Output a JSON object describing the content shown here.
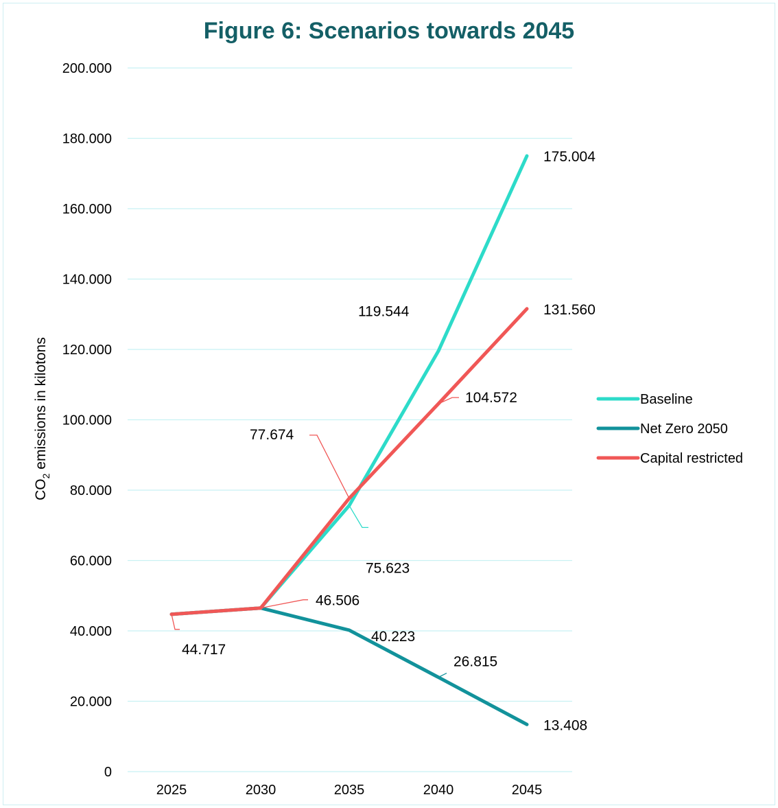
{
  "chart_data": {
    "type": "line",
    "title": "Figure 6: Scenarios towards 2045",
    "ylabel_main": "CO",
    "ylabel_sub": "2",
    "ylabel_rest": " emissions in kilotons",
    "xlabel": "",
    "categories": [
      "2025",
      "2030",
      "2035",
      "2040",
      "2045"
    ],
    "ylim": [
      0,
      200000
    ],
    "yticks": [
      {
        "value": 0,
        "label": "0"
      },
      {
        "value": 20000,
        "label": "20.000"
      },
      {
        "value": 40000,
        "label": "40.000"
      },
      {
        "value": 60000,
        "label": "60.000"
      },
      {
        "value": 80000,
        "label": "80.000"
      },
      {
        "value": 100000,
        "label": "100.000"
      },
      {
        "value": 120000,
        "label": "120.000"
      },
      {
        "value": 140000,
        "label": "140.000"
      },
      {
        "value": 160000,
        "label": "160.000"
      },
      {
        "value": 180000,
        "label": "180.000"
      },
      {
        "value": 200000,
        "label": "200.000"
      }
    ],
    "grid": true,
    "legend_position": "right",
    "series": [
      {
        "name": "Baseline",
        "color": "#2ddbc9",
        "values": [
          44717,
          46506,
          75623,
          119544,
          175004
        ],
        "labels": [
          "",
          "",
          "75.623",
          "119.544",
          "175.004"
        ]
      },
      {
        "name": "Net Zero 2050",
        "color": "#12929b",
        "values": [
          44717,
          46506,
          40223,
          26815,
          13408
        ],
        "labels": [
          "",
          "",
          "40.223",
          "26.815",
          "13.408"
        ]
      },
      {
        "name": "Capital restricted",
        "color": "#f05756",
        "values": [
          44717,
          46506,
          77674,
          104572,
          131560
        ],
        "labels": [
          "44.717",
          "46.506",
          "77.674",
          "104.572",
          "131.560"
        ]
      }
    ]
  }
}
